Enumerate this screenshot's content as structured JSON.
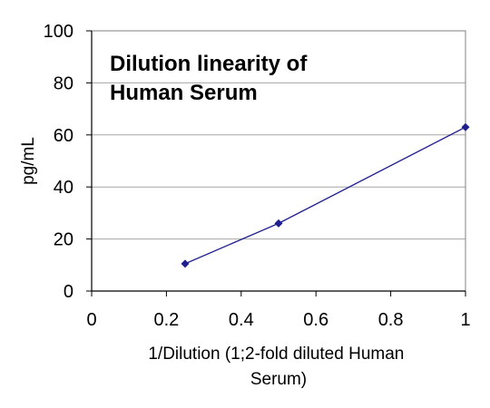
{
  "chart_data": {
    "type": "line",
    "title_lines": [
      "Dilution linearity of",
      "Human Serum"
    ],
    "xlabel_lines": [
      "1/Dilution  (1;2-fold diluted  Human",
      "Serum)"
    ],
    "ylabel": "pg/mL",
    "xlim": [
      0,
      1
    ],
    "ylim": [
      0,
      100
    ],
    "x_ticks": [
      0,
      0.2,
      0.4,
      0.6,
      0.8,
      1
    ],
    "x_tick_labels": [
      "0",
      "0.2",
      "0.4",
      "0.6",
      "0.8",
      "1"
    ],
    "y_ticks": [
      0,
      20,
      40,
      60,
      80,
      100
    ],
    "y_tick_labels": [
      "0",
      "20",
      "40",
      "60",
      "80",
      "100"
    ],
    "grid": "horizontal",
    "legend": "none",
    "series": [
      {
        "x": [
          0.25,
          0.5,
          1
        ],
        "y": [
          10.5,
          26,
          63
        ],
        "color": "#1f1f8f",
        "marker": "diamond"
      }
    ],
    "colors": {
      "line": "#1f1f8f",
      "grid": "#a6a6a6",
      "axis": "#000000",
      "frame": "#808080"
    }
  }
}
